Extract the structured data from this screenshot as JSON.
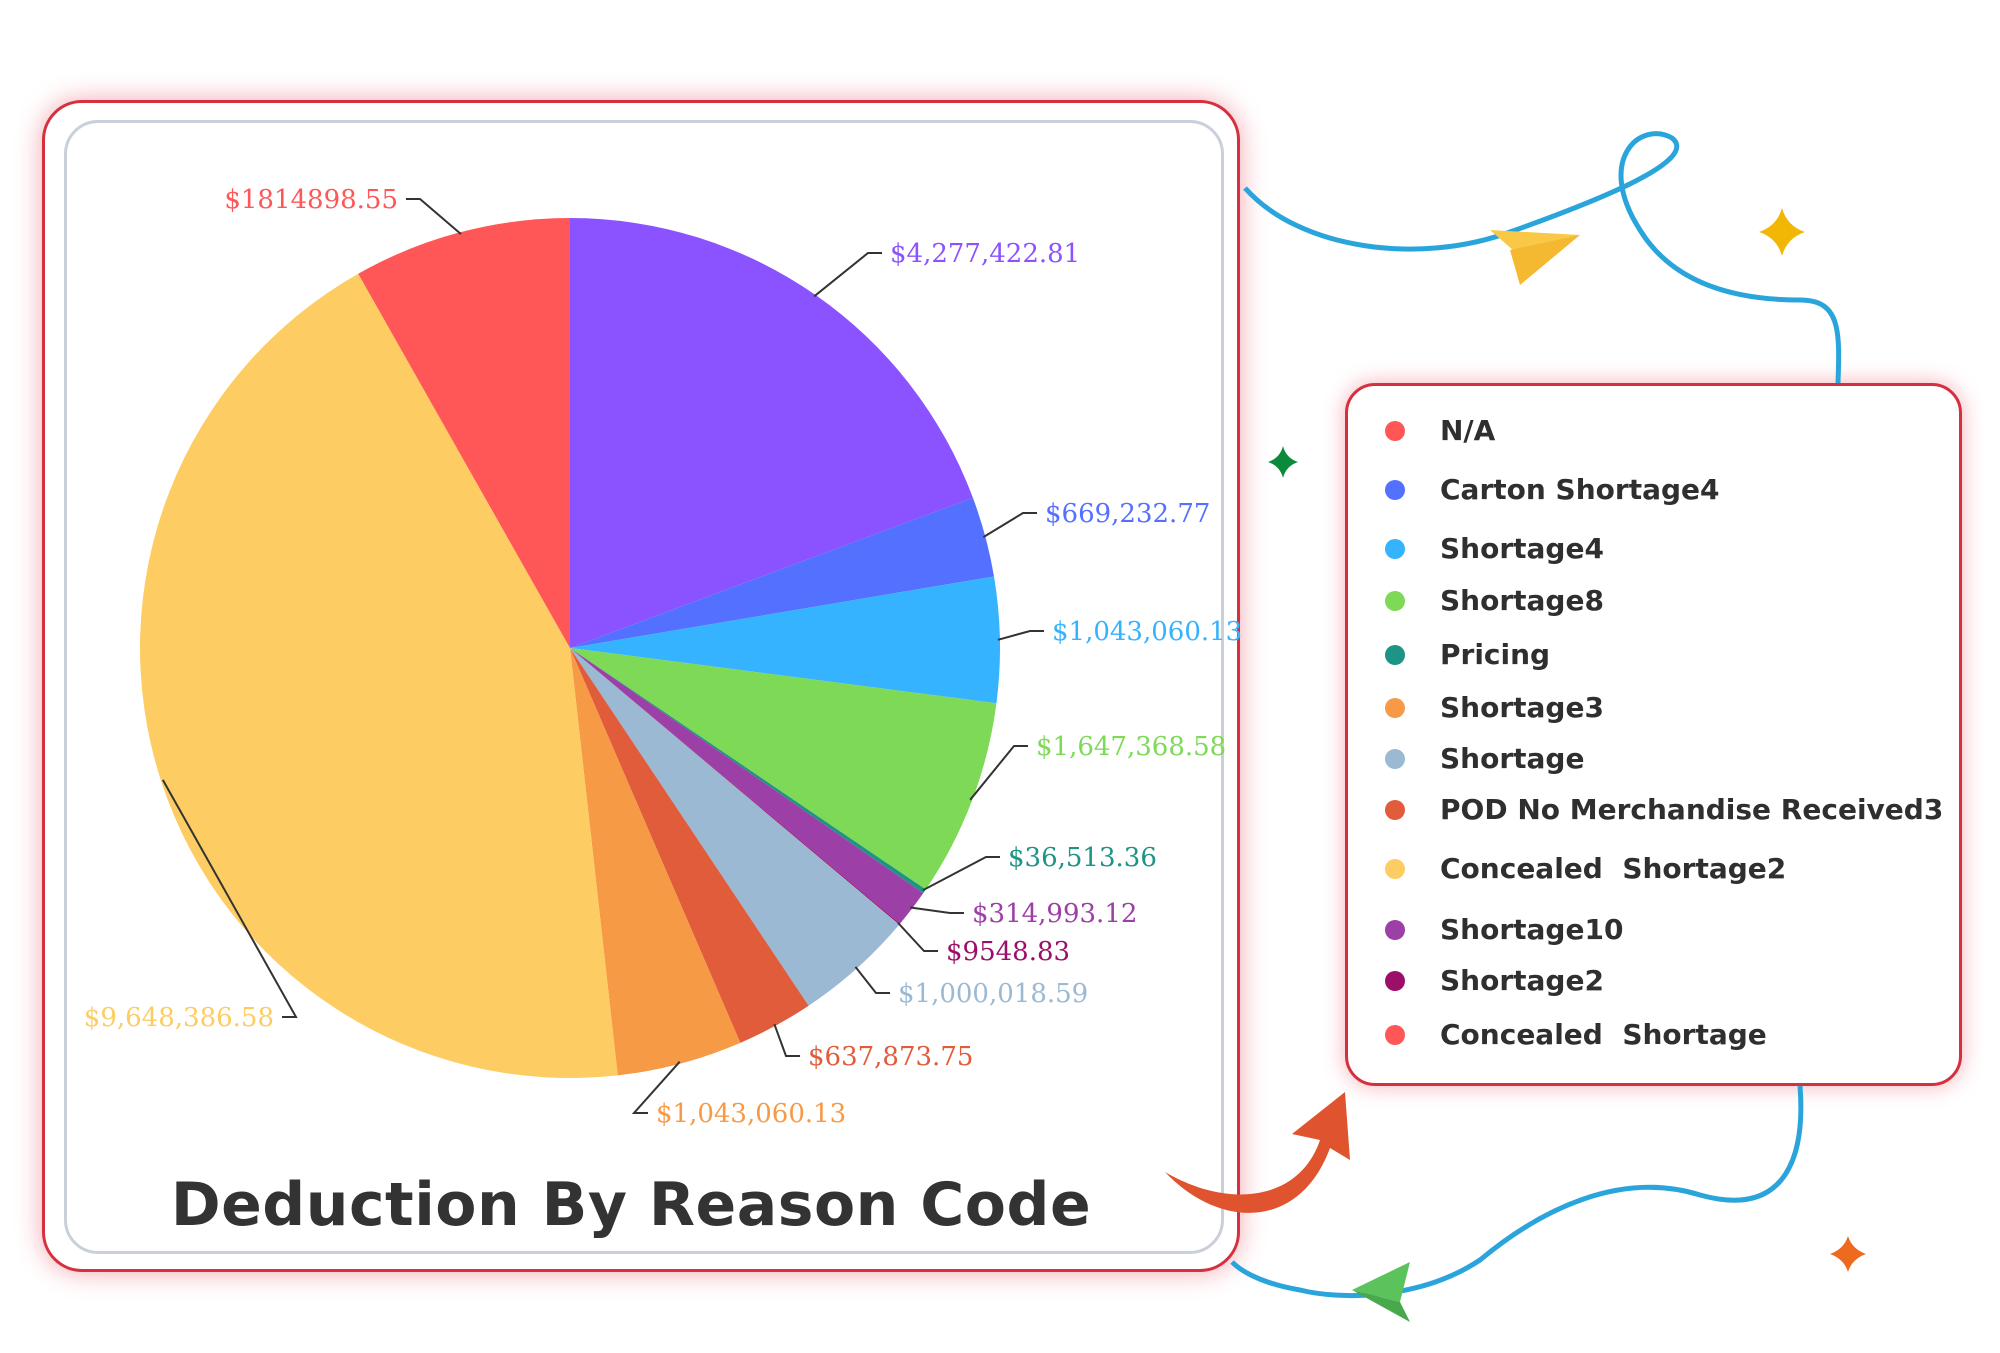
{
  "chart_data": {
    "type": "pie",
    "title": "Deduction By Reason Code",
    "slices": [
      {
        "label": "$4,277,422.81",
        "value": 4277422.81,
        "color": "#8b53ff"
      },
      {
        "label": "$669,232.77",
        "value": 669232.77,
        "color": "#5470ff"
      },
      {
        "label": "$1,043,060.13",
        "value": 1043060.13,
        "color": "#36b3ff"
      },
      {
        "label": "$1,647,368.58",
        "value": 1647368.58,
        "color": "#7ed957"
      },
      {
        "label": "$36,513.36",
        "value": 36513.36,
        "color": "#1e9484"
      },
      {
        "label": "$314,993.12",
        "value": 314993.12,
        "color": "#9c3fa6"
      },
      {
        "label": "$9548.83",
        "value": 9548.83,
        "color": "#9b0f68"
      },
      {
        "label": "$1,000,018.59",
        "value": 1000018.59,
        "color": "#9bb9d3"
      },
      {
        "label": "$637,873.75",
        "value": 637873.75,
        "color": "#e05c3a"
      },
      {
        "label": "$1,043,060.13",
        "value": 1043060.13,
        "color": "#f79a45"
      },
      {
        "label": "$9,648,386.58",
        "value": 9648386.58,
        "color": "#fdcd63"
      },
      {
        "label": "$1814898.55",
        "value": 1814898.55,
        "color": "#ff5757"
      }
    ],
    "legend": {
      "placement": "right",
      "items": [
        {
          "label": "N/A",
          "color": "#ff5757"
        },
        {
          "label": "Carton Shortage4",
          "color": "#5470ff"
        },
        {
          "label": "Shortage4",
          "color": "#36b3ff"
        },
        {
          "label": "Shortage8",
          "color": "#7ed957"
        },
        {
          "label": "Pricing",
          "color": "#1e9484"
        },
        {
          "label": "Shortage3",
          "color": "#f79a45"
        },
        {
          "label": "Shortage",
          "color": "#9bb9d3"
        },
        {
          "label": "POD No Merchandise Received3",
          "color": "#e05c3a"
        },
        {
          "label": "Concealed  Shortage2",
          "color": "#fdcd63"
        },
        {
          "label": "Shortage10",
          "color": "#9c3fa6"
        },
        {
          "label": "Shortage2",
          "color": "#9b0f68"
        },
        {
          "label": "Concealed  Shortage",
          "color": "#ff5757"
        }
      ]
    }
  }
}
